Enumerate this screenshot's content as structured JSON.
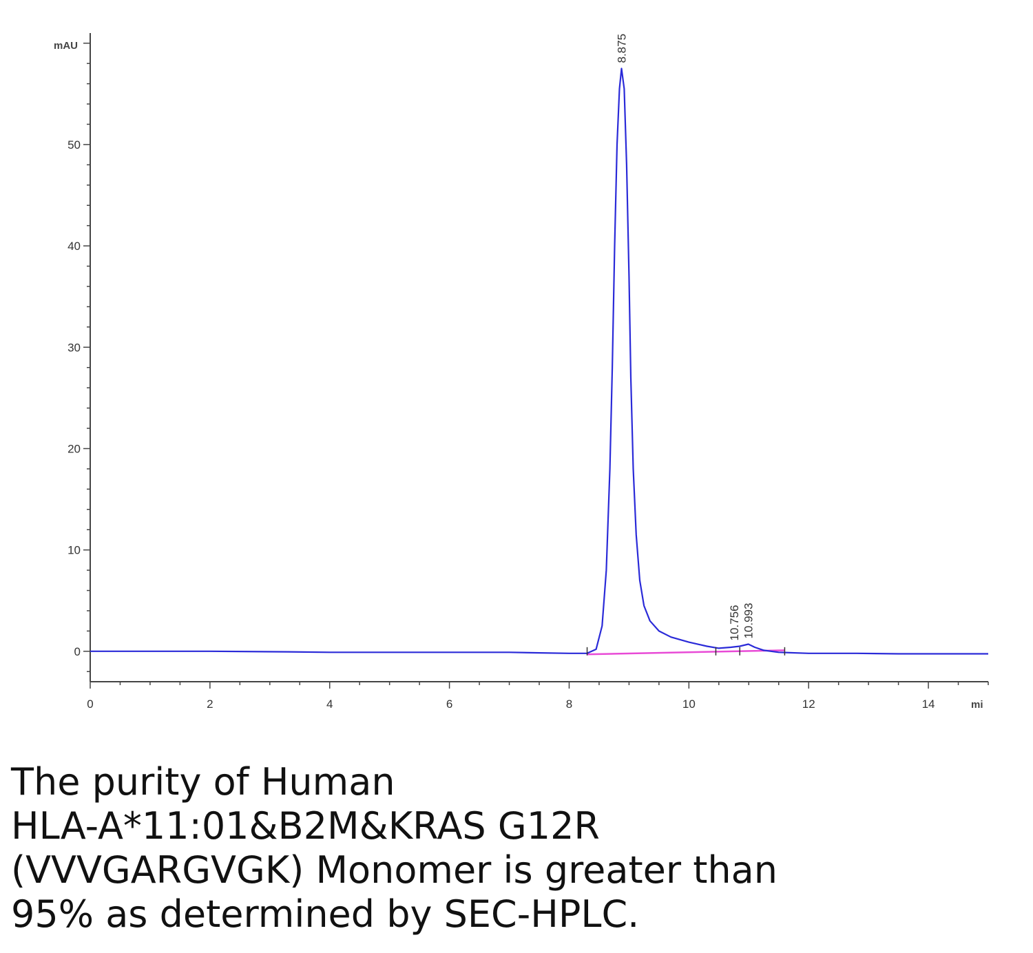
{
  "chart_data": {
    "type": "line",
    "y_unit": "mAU",
    "x_unit": "mi",
    "xlim": [
      0,
      15
    ],
    "ylim": [
      -3,
      61
    ],
    "x_ticks": [
      0,
      2,
      4,
      6,
      8,
      10,
      12,
      14
    ],
    "y_ticks": [
      0,
      10,
      20,
      30,
      40,
      50
    ],
    "grid": false,
    "legend": "none",
    "colors": {
      "trace": "#2a2ad8",
      "baseline": "#e84ad6",
      "axis": "#444444"
    },
    "peaks": [
      {
        "rt": 8.875,
        "label": "8.875",
        "height": 57.5
      },
      {
        "rt": 10.756,
        "label": "10.756",
        "height": 0.5
      },
      {
        "rt": 10.993,
        "label": "10.993",
        "height": 0.7
      }
    ],
    "series": [
      {
        "x": [
          0,
          2,
          3.3,
          4,
          6,
          7,
          7.5,
          8,
          8.3,
          8.45,
          8.55,
          8.62,
          8.68,
          8.72,
          8.76,
          8.8,
          8.84,
          8.875,
          8.92,
          8.96,
          9.0,
          9.03,
          9.07,
          9.12,
          9.18,
          9.25,
          9.35,
          9.5,
          9.7,
          10.0,
          10.3,
          10.5,
          10.7,
          10.85,
          10.993,
          11.1,
          11.25,
          11.5,
          12,
          12.8,
          13.5,
          14,
          14.5,
          15
        ],
        "y": [
          0,
          0,
          -0.05,
          -0.1,
          -0.1,
          -0.1,
          -0.15,
          -0.2,
          -0.2,
          0.2,
          2.5,
          8.0,
          18.0,
          28.0,
          40.0,
          50.0,
          55.5,
          57.5,
          55.5,
          48.0,
          37.0,
          27.0,
          18.0,
          11.5,
          7.0,
          4.5,
          3.0,
          2.0,
          1.4,
          0.9,
          0.5,
          0.3,
          0.4,
          0.5,
          0.7,
          0.4,
          0.1,
          -0.1,
          -0.2,
          -0.2,
          -0.25,
          -0.25,
          -0.25,
          -0.25
        ]
      }
    ],
    "baseline_segment": {
      "x": [
        8.3,
        11.6
      ],
      "y": [
        -0.3,
        0.1
      ]
    },
    "peak_markers": [
      8.3,
      10.45,
      10.85,
      11.6
    ]
  },
  "caption": {
    "lines": [
      "The purity of Human",
      "HLA-A*11:01&B2M&KRAS G12R",
      "(VVVGARGVGK) Monomer is greater than",
      "95% as determined by SEC-HPLC."
    ]
  }
}
